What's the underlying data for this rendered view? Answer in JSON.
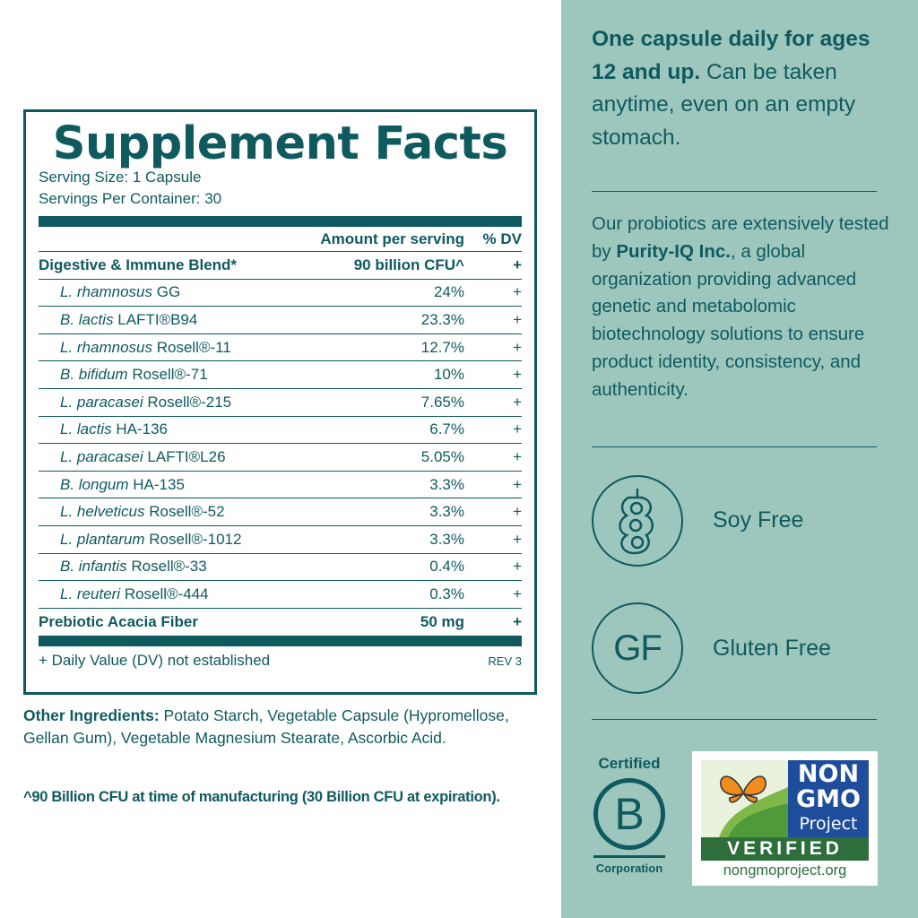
{
  "facts": {
    "title": "Supplement Facts",
    "serving_size": "Serving Size: 1 Capsule",
    "servings_per_container": "Servings Per Container: 30",
    "header_amount": "Amount per serving",
    "header_dv": "% DV",
    "rows": [
      {
        "name": "Digestive & Immune Blend*",
        "name_italic": "",
        "name_rest": "",
        "amount": "90 billion CFU^",
        "dv": "+"
      },
      {
        "name": "",
        "name_italic": "L. rhamnosus",
        "name_rest": " GG",
        "amount": "24%",
        "dv": "+"
      },
      {
        "name": "",
        "name_italic": "B. lactis",
        "name_rest": " LAFTI®B94",
        "amount": "23.3%",
        "dv": "+"
      },
      {
        "name": "",
        "name_italic": "L. rhamnosus",
        "name_rest": " Rosell®-11",
        "amount": "12.7%",
        "dv": "+"
      },
      {
        "name": "",
        "name_italic": "B. bifidum",
        "name_rest": " Rosell®-71",
        "amount": "10%",
        "dv": "+"
      },
      {
        "name": "",
        "name_italic": "L. paracasei",
        "name_rest": " Rosell®-215",
        "amount": "7.65%",
        "dv": "+"
      },
      {
        "name": "",
        "name_italic": "L. lactis",
        "name_rest": " HA-136",
        "amount": "6.7%",
        "dv": "+"
      },
      {
        "name": "",
        "name_italic": "L. paracasei",
        "name_rest": " LAFTI®L26",
        "amount": "5.05%",
        "dv": "+"
      },
      {
        "name": "",
        "name_italic": "B. longum",
        "name_rest": " HA-135",
        "amount": "3.3%",
        "dv": "+"
      },
      {
        "name": "",
        "name_italic": "L. helveticus",
        "name_rest": " Rosell®-52",
        "amount": "3.3%",
        "dv": "+"
      },
      {
        "name": "",
        "name_italic": "L. plantarum",
        "name_rest": " Rosell®-1012",
        "amount": "3.3%",
        "dv": "+"
      },
      {
        "name": "",
        "name_italic": "B. infantis",
        "name_rest": " Rosell®-33",
        "amount": "0.4%",
        "dv": "+"
      },
      {
        "name": "",
        "name_italic": "L. reuteri",
        "name_rest": " Rosell®-444",
        "amount": "0.3%",
        "dv": "+"
      },
      {
        "name": "Prebiotic Acacia Fiber",
        "name_italic": "",
        "name_rest": "",
        "amount": "50 mg",
        "dv": "+"
      }
    ],
    "footnote": "+ Daily Value (DV) not established",
    "rev": "REV 3"
  },
  "other_ingredients": {
    "label": "Other Ingredients:",
    "text": " Potato Starch, Vegetable Capsule (Hypromellose, Gellan Gum), Vegetable Magnesium Stearate, Ascorbic Acid."
  },
  "cfu_note": "^90 Billion CFU at time of manufacturing (30 Billion CFU at expiration).",
  "side": {
    "lead_bold": "One capsule daily for ages 12 and up.",
    "lead_rest": " Can be taken anytime, even on an empty stomach.",
    "para_a": "Our probiotics are extensively tested by ",
    "para_bold": "Purity-IQ Inc.",
    "para_b": ", a global organization providing advanced genetic and metabolomic biotechnology solutions to ensure product identity, consistency, and authenticity.",
    "soy_label": "Soy Free",
    "gf_badge": "GF",
    "gf_label": "Gluten Free",
    "bcorp_top": "Certified",
    "bcorp_letter": "B",
    "bcorp_bottom": "Corporation",
    "ngmo_line1": "NON",
    "ngmo_line2": "GMO",
    "ngmo_line3": "Project",
    "ngmo_verified": "VERIFIED",
    "ngmo_url": "nongmoproject.org"
  },
  "colors": {
    "teal": "#0f5a5f",
    "side_bg": "#9dc7bd",
    "ngmo_blue": "#1e4d9b",
    "ngmo_green": "#7fb848",
    "butterfly_orange": "#f28c1e"
  }
}
